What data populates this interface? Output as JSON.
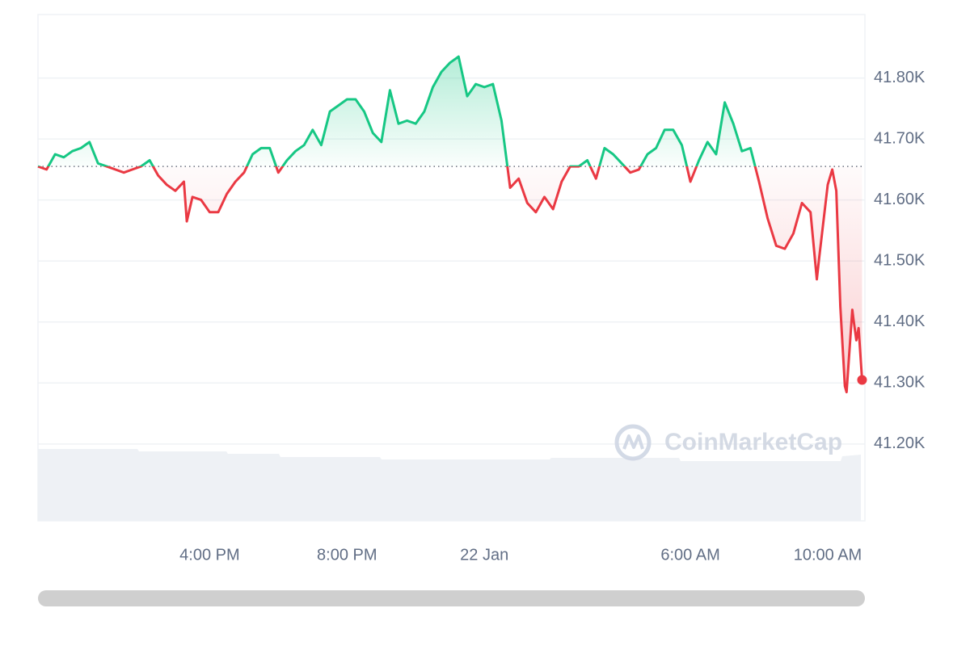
{
  "chart_data": {
    "type": "line",
    "watermark": "CoinMarketCap",
    "colors": {
      "up": "#16c784",
      "down": "#ea3943"
    },
    "x": [
      "21 Jan 11:00",
      "21 Jan 11:15",
      "21 Jan 11:30",
      "21 Jan 11:45",
      "21 Jan 12:00",
      "21 Jan 12:15",
      "21 Jan 12:30",
      "21 Jan 12:45",
      "21 Jan 13:00",
      "21 Jan 13:15",
      "21 Jan 13:30",
      "21 Jan 13:45",
      "21 Jan 14:00",
      "21 Jan 14:15",
      "21 Jan 14:30",
      "21 Jan 14:45",
      "21 Jan 15:00",
      "21 Jan 15:15",
      "21 Jan 15:20",
      "21 Jan 15:30",
      "21 Jan 15:45",
      "21 Jan 16:00",
      "21 Jan 16:15",
      "21 Jan 16:30",
      "21 Jan 16:45",
      "21 Jan 17:00",
      "21 Jan 17:15",
      "21 Jan 17:30",
      "21 Jan 17:45",
      "21 Jan 18:00",
      "21 Jan 18:15",
      "21 Jan 18:30",
      "21 Jan 18:45",
      "21 Jan 19:00",
      "21 Jan 19:15",
      "21 Jan 19:30",
      "21 Jan 19:45",
      "21 Jan 20:00",
      "21 Jan 20:15",
      "21 Jan 20:30",
      "21 Jan 20:45",
      "21 Jan 21:00",
      "21 Jan 21:15",
      "21 Jan 21:30",
      "21 Jan 21:45",
      "21 Jan 22:00",
      "21 Jan 22:15",
      "21 Jan 22:30",
      "21 Jan 22:45",
      "21 Jan 23:00",
      "21 Jan 23:15",
      "21 Jan 23:30",
      "21 Jan 23:45",
      "22 Jan 00:00",
      "22 Jan 00:15",
      "22 Jan 00:30",
      "22 Jan 00:45",
      "22 Jan 01:00",
      "22 Jan 01:15",
      "22 Jan 01:30",
      "22 Jan 01:45",
      "22 Jan 02:00",
      "22 Jan 02:15",
      "22 Jan 02:30",
      "22 Jan 02:45",
      "22 Jan 03:00",
      "22 Jan 03:15",
      "22 Jan 03:30",
      "22 Jan 03:45",
      "22 Jan 04:00",
      "22 Jan 04:15",
      "22 Jan 04:30",
      "22 Jan 04:45",
      "22 Jan 05:00",
      "22 Jan 05:15",
      "22 Jan 05:30",
      "22 Jan 05:45",
      "22 Jan 06:00",
      "22 Jan 06:15",
      "22 Jan 06:30",
      "22 Jan 06:45",
      "22 Jan 07:00",
      "22 Jan 07:15",
      "22 Jan 07:30",
      "22 Jan 07:45",
      "22 Jan 08:00",
      "22 Jan 08:15",
      "22 Jan 08:30",
      "22 Jan 08:45",
      "22 Jan 09:00",
      "22 Jan 09:15",
      "22 Jan 09:30",
      "22 Jan 09:41",
      "22 Jan 09:45",
      "22 Jan 10:00",
      "22 Jan 10:08",
      "22 Jan 10:15",
      "22 Jan 10:22",
      "22 Jan 10:30",
      "22 Jan 10:33",
      "22 Jan 10:43",
      "22 Jan 10:45",
      "22 Jan 10:50",
      "22 Jan 10:54",
      "22 Jan 11:00"
    ],
    "values": [
      41655,
      41650,
      41675,
      41670,
      41680,
      41685,
      41695,
      41660,
      41655,
      41650,
      41645,
      41650,
      41655,
      41665,
      41640,
      41625,
      41615,
      41630,
      41565,
      41605,
      41600,
      41580,
      41580,
      41610,
      41630,
      41645,
      41675,
      41685,
      41685,
      41645,
      41665,
      41680,
      41690,
      41715,
      41690,
      41745,
      41755,
      41765,
      41765,
      41745,
      41710,
      41695,
      41780,
      41725,
      41730,
      41725,
      41745,
      41785,
      41810,
      41825,
      41835,
      41770,
      41790,
      41785,
      41790,
      41730,
      41620,
      41635,
      41595,
      41580,
      41605,
      41585,
      41630,
      41655,
      41655,
      41665,
      41635,
      41685,
      41675,
      41660,
      41645,
      41650,
      41675,
      41685,
      41715,
      41715,
      41690,
      41630,
      41665,
      41695,
      41675,
      41760,
      41725,
      41680,
      41685,
      41630,
      41570,
      41525,
      41520,
      41545,
      41595,
      41580,
      41470,
      41505,
      41625,
      41650,
      41615,
      41425,
      41295,
      41285,
      41420,
      41405,
      41370,
      41390,
      41305
    ],
    "xlim": [
      "21 Jan 11:00",
      "22 Jan 11:05"
    ],
    "xticks": [
      {
        "value": "21 Jan 16:00",
        "label": "4:00 PM"
      },
      {
        "value": "21 Jan 20:00",
        "label": "8:00 PM"
      },
      {
        "value": "22 Jan 00:00",
        "label": "22 Jan"
      },
      {
        "value": "22 Jan 06:00",
        "label": "6:00 AM"
      },
      {
        "value": "22 Jan 10:00",
        "label": "10:00 AM"
      }
    ],
    "ylim": [
      41074,
      41904
    ],
    "yticks": [
      {
        "value": 41200,
        "label": "41.20K"
      },
      {
        "value": 41300,
        "label": "41.30K"
      },
      {
        "value": 41400,
        "label": "41.40K"
      },
      {
        "value": 41500,
        "label": "41.50K"
      },
      {
        "value": 41600,
        "label": "41.60K"
      },
      {
        "value": 41700,
        "label": "41.70K"
      },
      {
        "value": 41800,
        "label": "41.80K"
      }
    ],
    "grid": true
  }
}
